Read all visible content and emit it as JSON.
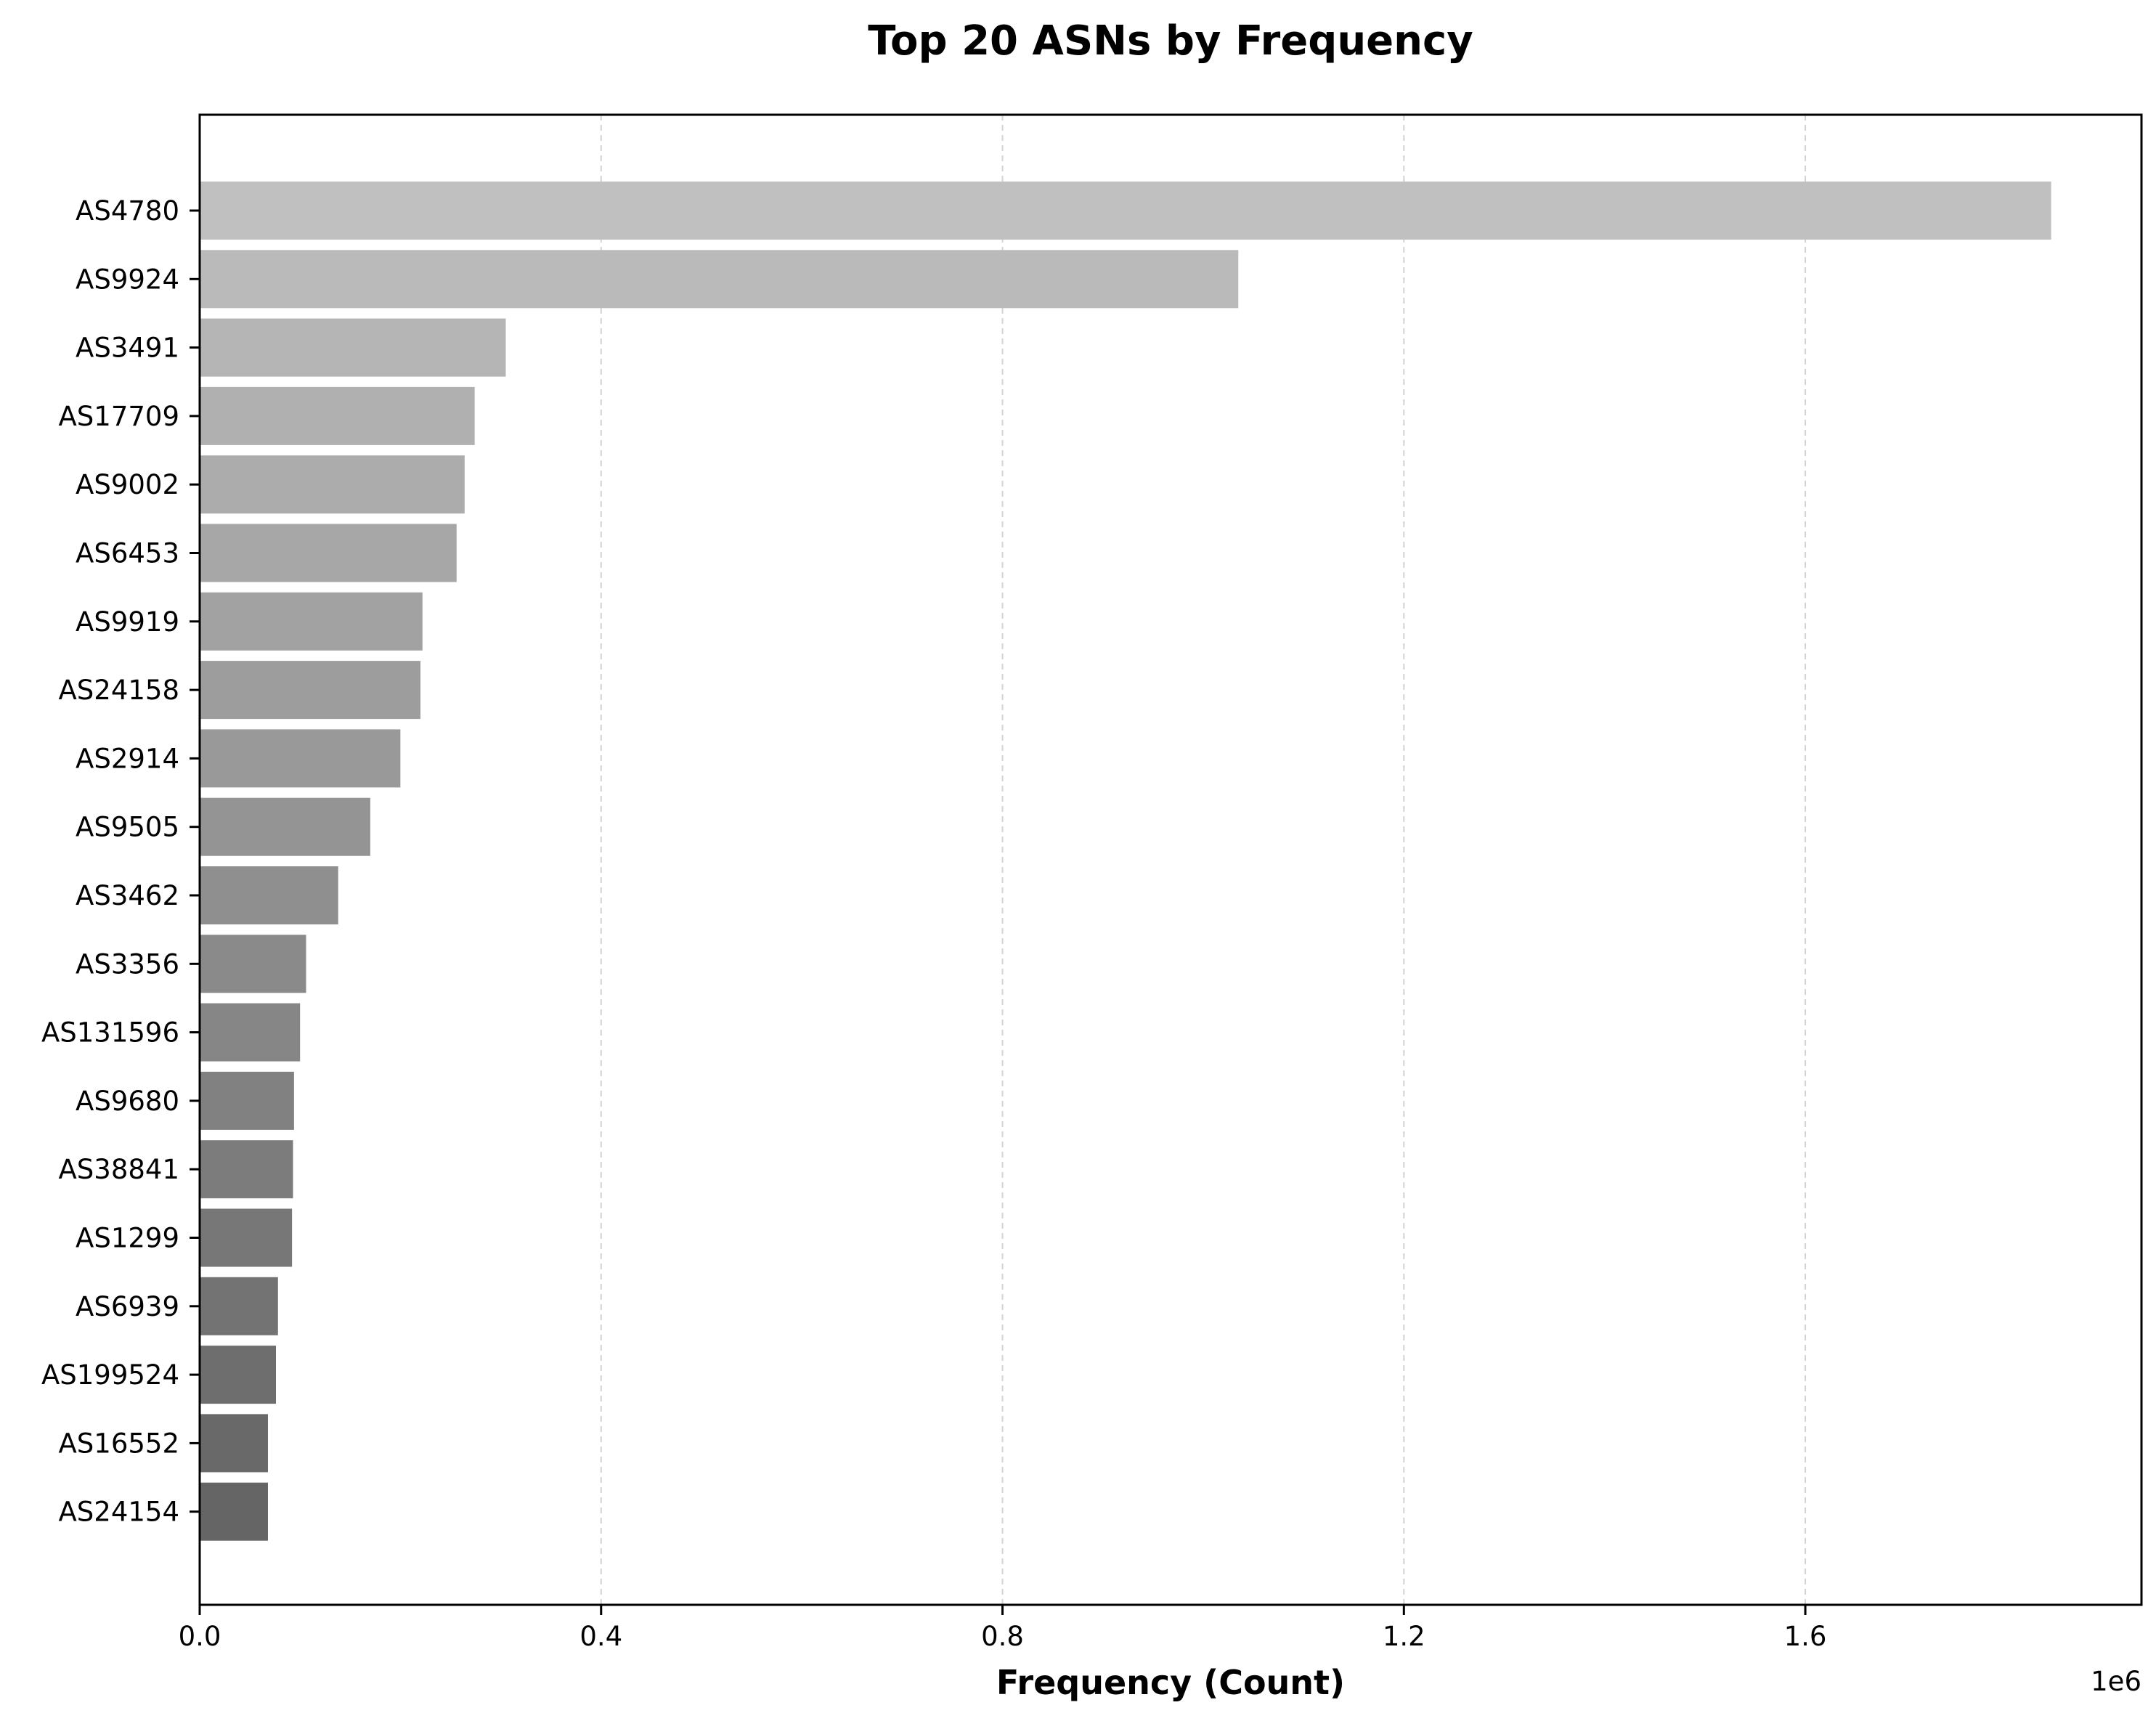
{
  "chart_data": {
    "type": "bar",
    "orientation": "horizontal",
    "title": "Top 20 ASNs by Frequency",
    "xlabel": "Frequency (Count)",
    "ylabel": "",
    "x_offset_label": "1e6",
    "xlim": [
      0,
      1935000
    ],
    "xticks": [
      0,
      400000,
      800000,
      1200000,
      1600000
    ],
    "xtick_labels": [
      "0.0",
      "0.4",
      "0.8",
      "1.2",
      "1.6"
    ],
    "grid": "x-dashed",
    "categories": [
      "AS4780",
      "AS9924",
      "AS3491",
      "AS17709",
      "AS9002",
      "AS6453",
      "AS9919",
      "AS24158",
      "AS2914",
      "AS9505",
      "AS3462",
      "AS3356",
      "AS131596",
      "AS9680",
      "AS38841",
      "AS1299",
      "AS6939",
      "AS199524",
      "AS16552",
      "AS24154"
    ],
    "values": [
      1845000,
      1035000,
      305000,
      274000,
      264000,
      256000,
      222000,
      220000,
      200000,
      170000,
      138000,
      106000,
      100000,
      94000,
      93000,
      92000,
      78000,
      76000,
      68000,
      68000
    ],
    "colors": [
      "#c0c0c0",
      "#bababa",
      "#b5b5b5",
      "#b0b0b0",
      "#acacac",
      "#a7a7a7",
      "#a2a2a2",
      "#9d9d9d",
      "#999999",
      "#949494",
      "#8f8f8f",
      "#8a8a8a",
      "#868686",
      "#818181",
      "#7c7c7c",
      "#777777",
      "#737373",
      "#6e6e6e",
      "#696969",
      "#656565"
    ]
  }
}
